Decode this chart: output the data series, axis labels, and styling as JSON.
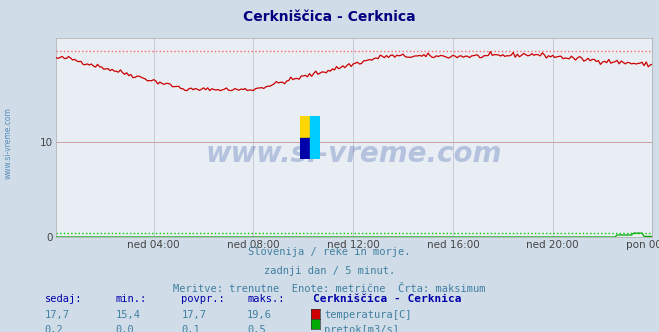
{
  "title": "Cerkniščica - Cerknica",
  "title_color": "#000080",
  "bg_color": "#d0dce8",
  "plot_bg_color": "#e8eef4",
  "grid_color_h": "#d0a0a0",
  "grid_color_v": "#c8c8d8",
  "x_labels": [
    "ned 04:00",
    "ned 08:00",
    "ned 12:00",
    "ned 16:00",
    "ned 20:00",
    "pon 00:00"
  ],
  "x_ticks_norm": [
    0.1667,
    0.3333,
    0.5,
    0.6667,
    0.8333,
    1.0
  ],
  "ylim": [
    0,
    20.9
  ],
  "yticks": [
    0,
    10
  ],
  "n_points": 288,
  "temp_min": 15.4,
  "temp_max": 19.6,
  "temp_avg": 17.7,
  "temp_current": 17.7,
  "flow_min": 0.0,
  "flow_max": 0.5,
  "flow_avg": 0.1,
  "flow_current": 0.2,
  "temp_color": "#cc0000",
  "flow_color": "#00aa00",
  "max_line_temp_color": "#ff6666",
  "max_line_flow_color": "#00cc00",
  "watermark": "www.si-vreme.com",
  "watermark_color": "#2040a0",
  "watermark_alpha": 0.25,
  "sub_text1": "Slovenija / reke in morje.",
  "sub_text2": "zadnji dan / 5 minut.",
  "sub_text3": "Meritve: trenutne  Enote: metrične  Črta: maksimum",
  "footer_color": "#4080a0",
  "header_color": "#0000aa",
  "sidebar_text": "www.si-vreme.com",
  "sidebar_color": "#4080b0",
  "logo_colors": [
    "#FFD700",
    "#00AAFF",
    "#0000AA",
    "#00CCFF"
  ]
}
